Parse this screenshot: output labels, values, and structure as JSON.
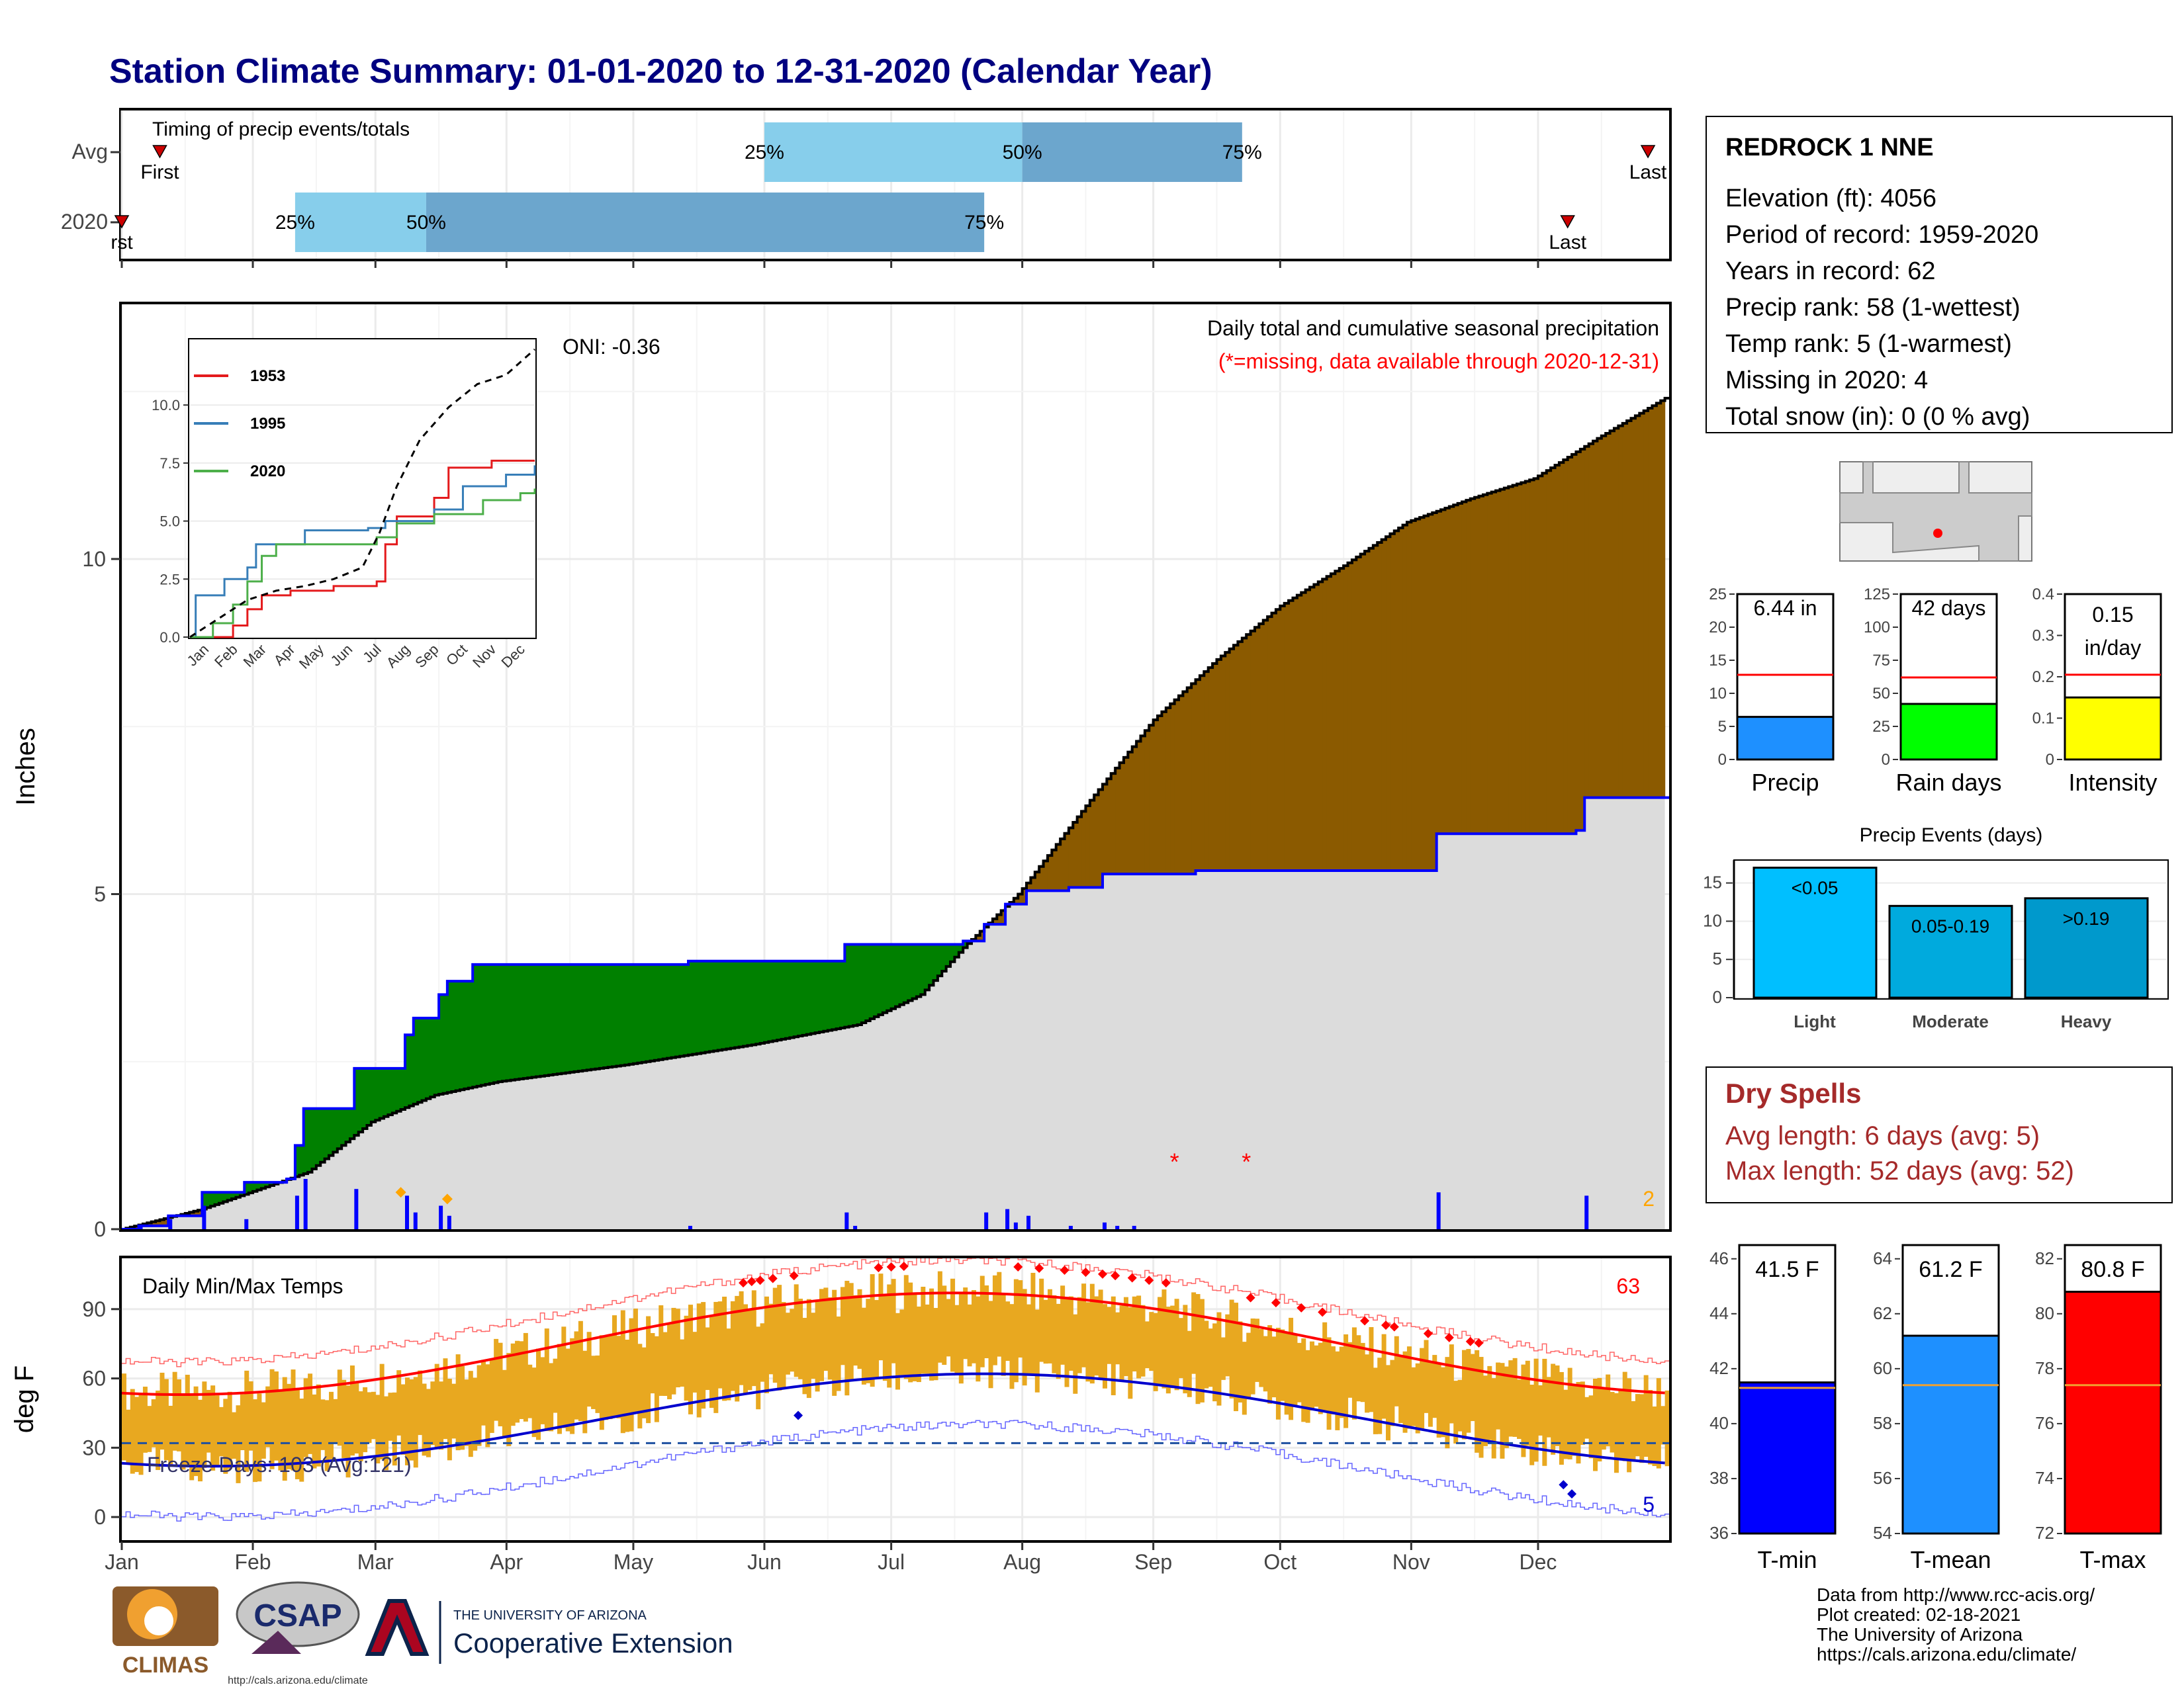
{
  "title": "Station Climate Summary: 01-01-2020 to 12-31-2020 (Calendar Year)",
  "timing": {
    "label": "Timing of precip events/totals",
    "rows": [
      {
        "name": "Avg",
        "first_doy": 10,
        "last_doy": 362,
        "first_label": "First",
        "last_label": "Last",
        "p25_doy": 153,
        "p50_doy": 214,
        "p75_doy": 266
      },
      {
        "name": "2020",
        "first_doy": 1,
        "last_doy": 343,
        "first_label": "rst",
        "last_label": "Last",
        "p25_doy": 42,
        "p50_doy": 73,
        "p75_doy": 205
      }
    ],
    "pct_labels": [
      "25%",
      "50%",
      "75%"
    ],
    "colors": {
      "light": "#87ceeb",
      "dark": "#6ca6cd",
      "marker": "#cc0000"
    }
  },
  "precip_chart": {
    "ylabel": "Inches",
    "yticks": [
      0,
      5,
      10
    ],
    "ylim": [
      0,
      13.8
    ],
    "subtitle": "Daily total and cumulative seasonal precipitation",
    "missing_note": "(*=missing, data available through 2020-12-31)",
    "oni": "ONI: -0.36",
    "corner_count": "2",
    "colors": {
      "fill_above": "#8b5a00",
      "fill_below": "#008000",
      "climo_area": "#dcdcdc",
      "year_line": "#0000ff",
      "daily_bars": "#0000ff",
      "missing": "#ff0000",
      "corner": "#ffa500"
    },
    "missing_marks_doy": [
      250,
      267
    ],
    "orange_diamonds": [
      {
        "doy": 67,
        "value": 0.55
      },
      {
        "doy": 78,
        "value": 0.45
      }
    ]
  },
  "inset": {
    "yticks": [
      "0.0",
      "2.5",
      "5.0",
      "7.5",
      "10.0"
    ],
    "months": [
      "Jan",
      "Feb",
      "Mar",
      "Apr",
      "May",
      "Jun",
      "Jul",
      "Aug",
      "Sep",
      "Oct",
      "Nov",
      "Dec"
    ],
    "legend": [
      {
        "name": "1953",
        "color": "#e41a1c"
      },
      {
        "name": "1995",
        "color": "#377eb8"
      },
      {
        "name": "2020",
        "color": "#4daf4a"
      }
    ]
  },
  "temp_chart": {
    "ylabel": "deg F",
    "title": "Daily Min/Max Temps",
    "freeze_label": "Freeze Days: 103 (Avg:121)",
    "count_hot": "63",
    "count_cold": "5",
    "yticks": [
      0,
      30,
      60,
      90
    ],
    "ylim": [
      -10,
      112
    ],
    "freeze_line": 32,
    "colors": {
      "bars": "#e8a820",
      "max_line": "#ff0000",
      "min_line": "#0000cd",
      "max_thin": "#ff6666",
      "min_thin": "#6666ff",
      "record_hot": "#ff0000",
      "record_cold": "#0000cd"
    }
  },
  "months": [
    "Jan",
    "Feb",
    "Mar",
    "Apr",
    "May",
    "Jun",
    "Jul",
    "Aug",
    "Sep",
    "Oct",
    "Nov",
    "Dec"
  ],
  "station": {
    "name": "REDROCK 1 NNE",
    "lines": [
      "Elevation (ft): 4056",
      "Period of record: 1959-2020",
      "Years in record: 62",
      "Precip rank: 58 (1-wettest)",
      "Temp rank: 5 (1-warmest)",
      "Missing in 2020: 4",
      "Total snow (in): 0 (0 % avg)"
    ]
  },
  "summary_bars": [
    {
      "label": "Precip",
      "value_text": "6.44 in",
      "value": 6.44,
      "avg": 12.8,
      "ymax": 25,
      "yticks": [
        0,
        5,
        10,
        15,
        20,
        25
      ],
      "color": "#1e90ff"
    },
    {
      "label": "Rain days",
      "value_text": "42 days",
      "value": 42,
      "avg": 62,
      "ymax": 125,
      "yticks": [
        0,
        25,
        50,
        75,
        100,
        125
      ],
      "color": "#00ff00"
    },
    {
      "label": "Intensity",
      "value_text": "0.15 in/day",
      "value": 0.15,
      "avg": 0.205,
      "ymax": 0.4,
      "yticks": [
        0.0,
        0.1,
        0.2,
        0.3,
        0.4
      ],
      "color": "#ffff00"
    }
  ],
  "precip_events": {
    "title": "Precip Events (days)",
    "yticks": [
      0,
      5,
      10,
      15
    ],
    "ymax": 18,
    "bars": [
      {
        "label": "Light",
        "inner": "<0.05",
        "value": 17,
        "color": "#00bfff"
      },
      {
        "label": "Moderate",
        "inner": "0.05-0.19",
        "value": 12,
        "color": "#00aadd"
      },
      {
        "label": "Heavy",
        "inner": ">0.19",
        "value": 13,
        "color": "#0099cc"
      }
    ]
  },
  "dry_spells": {
    "title": "Dry Spells",
    "avg_length": "Avg length: 6 days (avg: 5)",
    "max_length": "Max length: 52 days (avg: 52)",
    "color": "#a52a2a"
  },
  "temp_bars": [
    {
      "label": "T-min",
      "value_text": "41.5 F",
      "value": 41.5,
      "avg": 41.3,
      "ymin": 36,
      "ymax": 46.5,
      "yticks": [
        36,
        38,
        40,
        42,
        44,
        46
      ],
      "color": "#0000ff"
    },
    {
      "label": "T-mean",
      "value_text": "61.2 F",
      "value": 61.2,
      "avg": 59.4,
      "ymin": 54,
      "ymax": 64.5,
      "yticks": [
        54,
        56,
        58,
        60,
        62,
        64
      ],
      "color": "#1e90ff"
    },
    {
      "label": "T-max",
      "value_text": "80.8 F",
      "value": 80.8,
      "avg": 77.4,
      "ymin": 72,
      "ymax": 82.5,
      "yticks": [
        72,
        74,
        76,
        78,
        80,
        82
      ],
      "color": "#ff0000"
    }
  ],
  "footer": {
    "lines": [
      "Data from http://www.rcc-acis.org/",
      "Plot created: 02-18-2021",
      "The University of Arizona",
      "https://cals.arizona.edu/climate/"
    ]
  },
  "logos": {
    "climas": "CLIMAS",
    "csap": "CSAP",
    "csap_url": "http://cals.arizona.edu/climate",
    "ua_small": "THE UNIVERSITY OF ARIZONA",
    "ua_big": "Cooperative Extension"
  }
}
